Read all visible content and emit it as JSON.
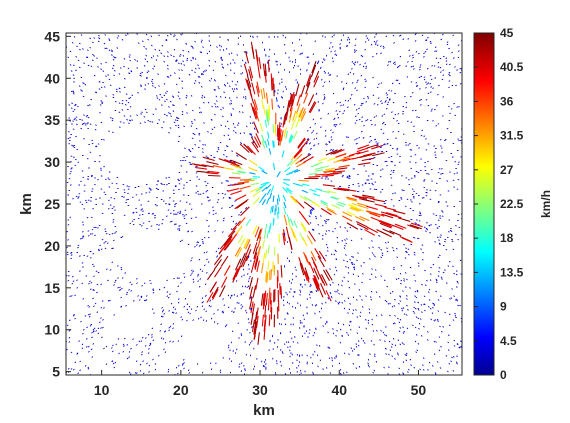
{
  "chart_data": {
    "type": "quiver",
    "title": "",
    "xlabel": "km",
    "ylabel": "km",
    "xlim": [
      5.5,
      55.5
    ],
    "ylim": [
      4.6,
      45.4
    ],
    "x_ticks": [
      10,
      20,
      30,
      40,
      50
    ],
    "y_ticks": [
      5,
      10,
      15,
      20,
      25,
      30,
      35,
      40,
      45
    ],
    "grid": false,
    "colorbar": {
      "label": "km/h",
      "colormap": "jet",
      "range": [
        0,
        45
      ],
      "ticks": [
        "0",
        "4.5",
        "9",
        "13.5",
        "18",
        "22.5",
        "27",
        "31.5",
        "36",
        "40.5",
        "45"
      ]
    },
    "field": {
      "center": [
        32,
        28
      ],
      "core_speed": 15,
      "outer_speed": 42,
      "arms": [
        {
          "angle_deg": 100,
          "reach_km": 16,
          "end": [
            25,
            42
          ]
        },
        {
          "angle_deg": 70,
          "reach_km": 14,
          "end": [
            37,
            41
          ]
        },
        {
          "angle_deg": 15,
          "reach_km": 13,
          "end": [
            43,
            30
          ]
        },
        {
          "angle_deg": -20,
          "reach_km": 19,
          "end": [
            51,
            17
          ]
        },
        {
          "angle_deg": -65,
          "reach_km": 15,
          "end": [
            40,
            12
          ]
        },
        {
          "angle_deg": -95,
          "reach_km": 19,
          "end": [
            30,
            9
          ]
        },
        {
          "angle_deg": -120,
          "reach_km": 16,
          "end": [
            22,
            13
          ]
        },
        {
          "angle_deg": 170,
          "reach_km": 10,
          "end": [
            21,
            26
          ]
        }
      ],
      "gaps": [
        {
          "center": [
            15,
            31
          ],
          "rx_km": 5,
          "ry_km": 3.5
        },
        {
          "center": [
            16,
            19
          ],
          "rx_km": 4,
          "ry_km": 3
        },
        {
          "center": [
            14,
            11
          ],
          "rx_km": 2.5,
          "ry_km": 2
        },
        {
          "center": [
            23,
            8.5
          ],
          "rx_km": 3,
          "ry_km": 2.5
        },
        {
          "center": [
            30,
            24
          ],
          "rx_km": 1.5,
          "ry_km": 1.5
        }
      ]
    }
  }
}
